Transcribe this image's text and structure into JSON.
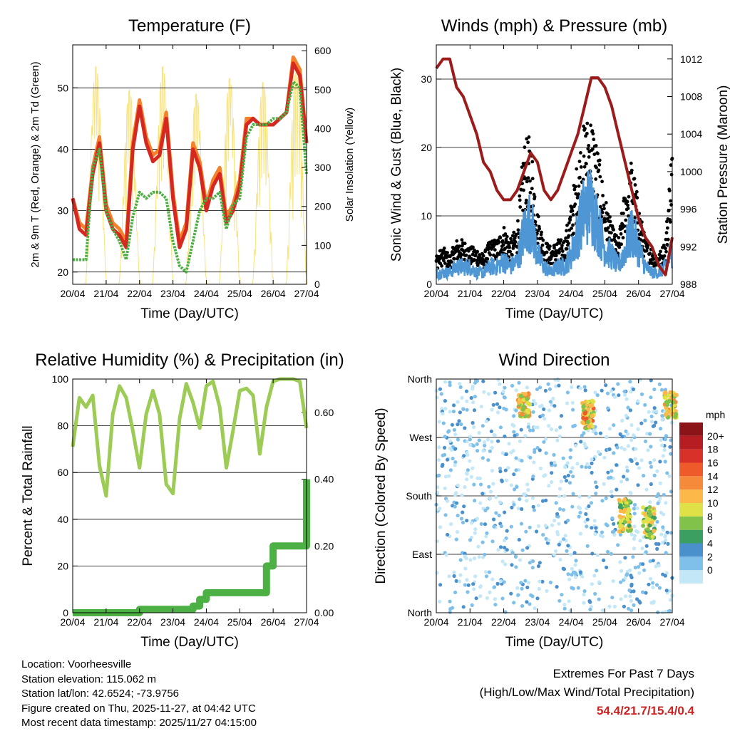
{
  "colors": {
    "temp2m": "#d42820",
    "temp9m": "#f5822a",
    "dewpoint": "#4caf42",
    "solar": "#f8e27a",
    "wind": "#4f97d4",
    "gust": "#000000",
    "pressure": "#9c1c1c",
    "rh": "#9ccc55",
    "precip": "#4cb045"
  },
  "chart_data": [
    {
      "id": "temperature",
      "type": "line",
      "title": "Temperature (F)",
      "xlabel": "Time (Day/UTC)",
      "ylabel": "2m & 9m T (Red, Orange) & 2m Td (Green)",
      "y2label": "Solar Insolation (Yellow)",
      "xticks": [
        "20/04",
        "21/04",
        "22/04",
        "23/04",
        "24/04",
        "25/04",
        "26/04",
        "27/04"
      ],
      "ylim": [
        18,
        57
      ],
      "yticks": [
        20,
        30,
        40,
        50
      ],
      "y2lim": [
        0,
        615
      ],
      "y2ticks": [
        0,
        100,
        200,
        300,
        400,
        500,
        600
      ],
      "x": [
        0,
        0.2,
        0.4,
        0.6,
        0.8,
        1.0,
        1.2,
        1.4,
        1.6,
        1.8,
        2.0,
        2.2,
        2.4,
        2.6,
        2.8,
        3.0,
        3.2,
        3.4,
        3.6,
        3.8,
        4.0,
        4.2,
        4.4,
        4.6,
        4.8,
        5.0,
        5.2,
        5.4,
        5.6,
        5.8,
        6.0,
        6.2,
        6.4,
        6.6,
        6.8,
        7.0
      ],
      "series": [
        {
          "name": "2m T",
          "values": [
            32,
            27,
            26,
            36,
            41,
            30,
            27,
            26,
            24,
            40,
            47,
            41,
            38,
            39,
            45,
            32,
            24,
            27,
            40,
            37,
            30,
            34,
            36,
            28,
            30,
            34,
            44,
            45,
            44,
            44,
            44,
            45,
            46,
            54,
            52,
            41
          ]
        },
        {
          "name": "9m T",
          "values": [
            32,
            28,
            27,
            37,
            42,
            31,
            28,
            27,
            25,
            41,
            48,
            42,
            39,
            40,
            46,
            33,
            25,
            28,
            41,
            38,
            31,
            35,
            37,
            29,
            31,
            35,
            45,
            45,
            44,
            44,
            44,
            45,
            46,
            55,
            53,
            41
          ]
        },
        {
          "name": "2m Td",
          "values": [
            22,
            22,
            22,
            37,
            40,
            30,
            27,
            25,
            22,
            29,
            33,
            32,
            33,
            33,
            32,
            25,
            21,
            20,
            25,
            30,
            32,
            32,
            33,
            27,
            31,
            32,
            42,
            44,
            44,
            44,
            45,
            45,
            46,
            51,
            50,
            36
          ]
        }
      ],
      "solar_daily_peaks": [
        {
          "day": 0.7,
          "peak": 560
        },
        {
          "day": 1.7,
          "peak": 500
        },
        {
          "day": 2.7,
          "peak": 560
        },
        {
          "day": 3.7,
          "peak": 490
        },
        {
          "day": 4.7,
          "peak": 530
        },
        {
          "day": 5.7,
          "peak": 520
        },
        {
          "day": 6.7,
          "peak": 580
        }
      ]
    },
    {
      "id": "winds",
      "type": "scatter",
      "title": "Winds (mph) & Pressure (mb)",
      "xlabel": "Time (Day/UTC)",
      "ylabel": "Sonic Wind & Gust (Blue, Black)",
      "y2label": "Station Pressure (Maroon)",
      "xticks": [
        "20/04",
        "21/04",
        "22/04",
        "23/04",
        "24/04",
        "25/04",
        "26/04",
        "27/04"
      ],
      "ylim": [
        0,
        35
      ],
      "yticks": [
        0,
        10,
        20,
        30
      ],
      "y2lim": [
        988,
        1013.5
      ],
      "y2ticks": [
        988,
        992,
        996,
        1000,
        1004,
        1008,
        1012
      ],
      "x": [
        0,
        0.2,
        0.4,
        0.6,
        0.8,
        1.0,
        1.2,
        1.4,
        1.6,
        1.8,
        2.0,
        2.2,
        2.4,
        2.6,
        2.8,
        3.0,
        3.2,
        3.4,
        3.6,
        3.8,
        4.0,
        4.2,
        4.4,
        4.6,
        4.8,
        5.0,
        5.2,
        5.4,
        5.6,
        5.8,
        6.0,
        6.2,
        6.4,
        6.6,
        6.8,
        7.0
      ],
      "series": [
        {
          "name": "Sonic Wind",
          "values": [
            2,
            2,
            2,
            3,
            3,
            3,
            2,
            2,
            3,
            3,
            4,
            3,
            4,
            9,
            11,
            5,
            3,
            2,
            3,
            3,
            5,
            9,
            13,
            14,
            10,
            6,
            5,
            3,
            6,
            9,
            6,
            3,
            2,
            2,
            3,
            6
          ]
        },
        {
          "name": "Gust",
          "values": [
            4,
            5,
            4,
            6,
            6,
            5,
            5,
            4,
            6,
            6,
            8,
            6,
            8,
            19,
            20,
            10,
            6,
            5,
            6,
            6,
            11,
            17,
            22,
            23,
            18,
            12,
            8,
            6,
            13,
            17,
            11,
            6,
            5,
            4,
            6,
            20
          ]
        },
        {
          "name": "Pressure",
          "values": [
            1011,
            1012,
            1012,
            1009,
            1008,
            1006,
            1004,
            1001,
            1000,
            998,
            997,
            997,
            998,
            1000,
            1002,
            1001,
            998,
            997,
            998,
            1000,
            1002,
            1004,
            1007,
            1010,
            1010,
            1009,
            1007,
            1004,
            1001,
            998,
            995,
            993,
            992,
            990,
            989,
            993
          ]
        }
      ]
    },
    {
      "id": "humidity",
      "type": "line",
      "title": "Relative Humidity (%) & Precipitation (in)",
      "xlabel": "Time (Day/UTC)",
      "ylabel": "Percent & Total Rainfall",
      "xticks": [
        "20/04",
        "21/04",
        "22/04",
        "23/04",
        "24/04",
        "25/04",
        "26/04",
        "27/04"
      ],
      "ylim": [
        0,
        100
      ],
      "yticks": [
        0,
        20,
        40,
        60,
        80,
        100
      ],
      "y2lim": [
        0,
        0.7
      ],
      "y2ticks": [
        "0.00",
        "0.20",
        "0.40",
        "0.60"
      ],
      "x": [
        0,
        0.2,
        0.4,
        0.6,
        0.8,
        1.0,
        1.2,
        1.4,
        1.6,
        1.8,
        2.0,
        2.2,
        2.4,
        2.6,
        2.8,
        3.0,
        3.2,
        3.4,
        3.6,
        3.8,
        4.0,
        4.2,
        4.4,
        4.6,
        4.8,
        5.0,
        5.2,
        5.4,
        5.6,
        5.8,
        6.0,
        6.2,
        6.4,
        6.6,
        6.8,
        7.0
      ],
      "series": [
        {
          "name": "RH",
          "values": [
            71,
            92,
            88,
            93,
            63,
            50,
            85,
            97,
            92,
            78,
            62,
            85,
            95,
            85,
            55,
            51,
            83,
            98,
            90,
            79,
            97,
            99,
            88,
            62,
            78,
            95,
            96,
            93,
            68,
            88,
            99,
            100,
            100,
            100,
            99,
            79
          ]
        },
        {
          "name": "Precip",
          "values": [
            0,
            0,
            0,
            0,
            0,
            0,
            0,
            0,
            0,
            0,
            0.01,
            0.01,
            0.01,
            0.01,
            0.01,
            0.01,
            0.01,
            0.01,
            0.02,
            0.04,
            0.06,
            0.06,
            0.06,
            0.06,
            0.06,
            0.06,
            0.06,
            0.06,
            0.06,
            0.14,
            0.2,
            0.2,
            0.2,
            0.2,
            0.2,
            0.4
          ]
        }
      ]
    },
    {
      "id": "direction",
      "type": "scatter",
      "title": "Wind Direction",
      "xlabel": "Time (Day/UTC)",
      "ylabel": "Direction (Colored By Speed)",
      "xticks": [
        "20/04",
        "21/04",
        "22/04",
        "23/04",
        "24/04",
        "25/04",
        "26/04",
        "27/04"
      ],
      "ylim": [
        0,
        360
      ],
      "yticks": [
        "North",
        "East",
        "South",
        "West",
        "North"
      ],
      "colorbar_title": "mph",
      "colorbar_labels": [
        "0",
        "2",
        "4",
        "6",
        "8",
        "10",
        "12",
        "14",
        "16",
        "18",
        "20+"
      ],
      "colorbar_colors": [
        "#c3e7f7",
        "#7fc0ea",
        "#4a90cc",
        "#3a9f60",
        "#80c24a",
        "#dfe146",
        "#fdb84a",
        "#f58b3a",
        "#ee5a29",
        "#d8312a",
        "#b51d22",
        "#8b1419"
      ],
      "clusters": [
        {
          "day": 2.6,
          "dir": 320,
          "spread": 18,
          "speeds": [
            8,
            10,
            12,
            14
          ]
        },
        {
          "day": 4.5,
          "dir": 305,
          "spread": 22,
          "speeds": [
            8,
            10,
            12,
            16
          ]
        },
        {
          "day": 5.6,
          "dir": 150,
          "spread": 25,
          "speeds": [
            6,
            8,
            10,
            12
          ]
        },
        {
          "day": 6.3,
          "dir": 140,
          "spread": 25,
          "speeds": [
            6,
            8,
            10,
            12
          ]
        },
        {
          "day": 6.95,
          "dir": 320,
          "spread": 20,
          "speeds": [
            8,
            10,
            12,
            14
          ]
        }
      ]
    }
  ],
  "station": {
    "location": "Location: Voorheesville",
    "elevation": "Station elevation: 115.062 m",
    "latlon": "Station lat/lon: 42.6524; -73.9756",
    "created": "Figure created on Thu, 2025-11-27, at 04:42 UTC",
    "recent": "Most recent data timestamp: 2025/11/27 04:15:00"
  },
  "extremes": {
    "title": "Extremes For Past 7 Days",
    "subtitle": "(High/Low/Max Wind/Total Precipitation)",
    "values": "54.4/21.7/15.4/0.4"
  }
}
